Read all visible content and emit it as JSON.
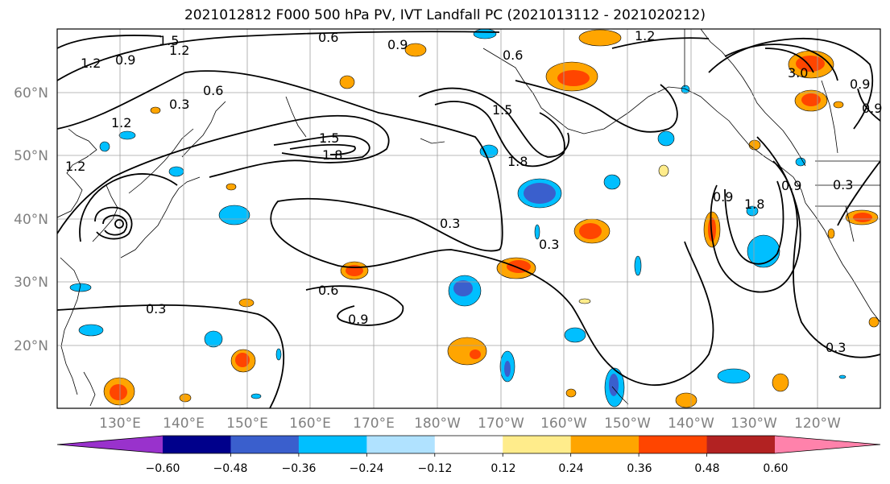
{
  "title": "2021012812 F000 500 hPa PV, IVT Landfall PC (2021013112 - 2021020212)",
  "lat_labels": [
    "60°N",
    "50°N",
    "40°N",
    "30°N",
    "20°N"
  ],
  "lon_labels": [
    "130°E",
    "140°E",
    "150°E",
    "160°E",
    "170°E",
    "180°W",
    "170°W",
    "160°W",
    "150°W",
    "140°W",
    "130°W",
    "120°W"
  ],
  "colorbar": {
    "ticks": [
      "−0.60",
      "−0.48",
      "−0.36",
      "−0.24",
      "−0.12",
      "0.12",
      "0.24",
      "0.36",
      "0.48",
      "0.60"
    ],
    "colors": [
      "#9932cc",
      "#00008b",
      "#3a5fcd",
      "#00bfff",
      "#b0e2ff",
      "#ffffff",
      "#ffec8b",
      "#ffa500",
      "#ff4500",
      "#b22222",
      "#ff82ab"
    ]
  },
  "contour_labels": [
    "1.5",
    "1.2",
    "0.9",
    "0.6",
    "0.3",
    "0.6",
    "0.9",
    "0.6",
    "1.2",
    "1.5",
    "1.2",
    "1.8",
    "1.5",
    "1.8",
    "0.3",
    "0.3",
    "0.6",
    "0.9",
    "0.3",
    "1.8",
    "0.9",
    "0.9",
    "0.3",
    "0.3",
    "1.2",
    "0.9",
    "3.0",
    "0.9",
    "1.2"
  ]
}
